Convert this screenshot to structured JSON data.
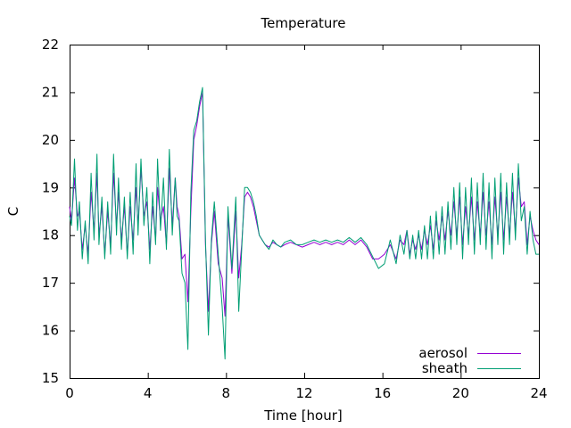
{
  "chart_data": {
    "type": "line",
    "title": "Temperature",
    "xlabel": "Time [hour]",
    "ylabel": "C",
    "xlim": [
      0,
      24
    ],
    "ylim": [
      15,
      22
    ],
    "xticks": [
      0,
      4,
      8,
      12,
      16,
      20,
      24
    ],
    "yticks": [
      15,
      16,
      17,
      18,
      19,
      20,
      21,
      22
    ],
    "grid": false,
    "legend_position": "bottom-right",
    "series": [
      {
        "name": "aerosol",
        "color": "#9400d3",
        "x": [
          0,
          0.1,
          0.25,
          0.4,
          0.5,
          0.65,
          0.8,
          0.95,
          1.1,
          1.25,
          1.4,
          1.5,
          1.65,
          1.8,
          1.95,
          2.1,
          2.25,
          2.4,
          2.5,
          2.65,
          2.8,
          2.95,
          3.1,
          3.25,
          3.4,
          3.5,
          3.65,
          3.8,
          3.95,
          4.1,
          4.25,
          4.4,
          4.5,
          4.65,
          4.8,
          4.95,
          5.1,
          5.25,
          5.4,
          5.5,
          5.6,
          5.75,
          5.9,
          6.05,
          6.2,
          6.35,
          6.5,
          6.65,
          6.8,
          6.95,
          7.1,
          7.25,
          7.4,
          7.6,
          7.8,
          7.95,
          8.1,
          8.3,
          8.5,
          8.65,
          8.8,
          8.95,
          9.1,
          9.25,
          9.4,
          9.55,
          9.7,
          9.85,
          10.0,
          10.2,
          10.4,
          10.6,
          10.8,
          11.0,
          11.3,
          11.6,
          11.9,
          12.2,
          12.5,
          12.8,
          13.1,
          13.4,
          13.7,
          14.0,
          14.3,
          14.6,
          14.9,
          15.2,
          15.5,
          15.8,
          16.1,
          16.4,
          16.7,
          16.9,
          17.1,
          17.25,
          17.4,
          17.55,
          17.7,
          17.85,
          18.0,
          18.15,
          18.3,
          18.45,
          18.6,
          18.75,
          18.9,
          19.05,
          19.2,
          19.35,
          19.5,
          19.65,
          19.8,
          19.95,
          20.1,
          20.25,
          20.4,
          20.55,
          20.7,
          20.85,
          21.0,
          21.15,
          21.3,
          21.45,
          21.6,
          21.75,
          21.9,
          22.05,
          22.2,
          22.35,
          22.5,
          22.65,
          22.8,
          22.95,
          23.1,
          23.25,
          23.4,
          23.55,
          23.7,
          23.85,
          24.0
        ],
        "y": [
          18.6,
          18.3,
          19.2,
          18.4,
          18.5,
          17.7,
          18.2,
          17.6,
          18.9,
          18.1,
          19.3,
          18.0,
          18.6,
          17.6,
          18.5,
          17.8,
          19.3,
          18.2,
          18.9,
          17.9,
          18.6,
          17.6,
          18.6,
          17.9,
          19.0,
          18.2,
          19.4,
          18.4,
          18.7,
          17.7,
          18.6,
          17.9,
          19.0,
          18.3,
          18.6,
          17.8,
          19.4,
          18.2,
          19.2,
          18.6,
          18.4,
          17.5,
          17.6,
          16.6,
          18.5,
          20.0,
          20.3,
          20.7,
          21.0,
          17.8,
          16.4,
          17.8,
          18.5,
          17.4,
          17.1,
          16.3,
          18.4,
          17.2,
          18.5,
          17.1,
          17.8,
          18.8,
          18.9,
          18.8,
          18.6,
          18.3,
          18.0,
          17.9,
          17.8,
          17.75,
          17.85,
          17.8,
          17.75,
          17.8,
          17.85,
          17.8,
          17.75,
          17.8,
          17.85,
          17.8,
          17.85,
          17.8,
          17.85,
          17.8,
          17.9,
          17.8,
          17.9,
          17.75,
          17.5,
          17.5,
          17.6,
          17.8,
          17.5,
          17.9,
          17.8,
          18.1,
          17.6,
          17.9,
          17.7,
          18.0,
          17.7,
          18.1,
          17.8,
          18.2,
          17.7,
          18.3,
          17.9,
          18.4,
          17.9,
          18.5,
          18.0,
          18.7,
          18.0,
          18.8,
          17.8,
          18.6,
          18.0,
          18.8,
          17.9,
          18.7,
          18.0,
          18.9,
          18.0,
          18.7,
          17.8,
          18.8,
          18.0,
          18.9,
          17.9,
          18.8,
          18.0,
          18.9,
          18.1,
          19.2,
          18.6,
          18.7,
          17.8,
          18.4,
          18.1,
          17.9,
          17.8
        ]
      },
      {
        "name": "sheath",
        "color": "#009e73",
        "x": [
          0,
          0.1,
          0.25,
          0.4,
          0.5,
          0.65,
          0.8,
          0.95,
          1.1,
          1.25,
          1.4,
          1.5,
          1.65,
          1.8,
          1.95,
          2.1,
          2.25,
          2.4,
          2.5,
          2.65,
          2.8,
          2.95,
          3.1,
          3.25,
          3.4,
          3.5,
          3.65,
          3.8,
          3.95,
          4.1,
          4.25,
          4.4,
          4.5,
          4.65,
          4.8,
          4.95,
          5.1,
          5.25,
          5.4,
          5.5,
          5.6,
          5.75,
          5.9,
          6.05,
          6.2,
          6.35,
          6.5,
          6.65,
          6.8,
          6.95,
          7.1,
          7.25,
          7.4,
          7.6,
          7.8,
          7.95,
          8.1,
          8.3,
          8.5,
          8.65,
          8.8,
          8.95,
          9.1,
          9.25,
          9.4,
          9.55,
          9.7,
          9.85,
          10.0,
          10.2,
          10.4,
          10.6,
          10.8,
          11.0,
          11.3,
          11.6,
          11.9,
          12.2,
          12.5,
          12.8,
          13.1,
          13.4,
          13.7,
          14.0,
          14.3,
          14.6,
          14.9,
          15.2,
          15.5,
          15.8,
          16.1,
          16.4,
          16.7,
          16.9,
          17.1,
          17.25,
          17.4,
          17.55,
          17.7,
          17.85,
          18.0,
          18.15,
          18.3,
          18.45,
          18.6,
          18.75,
          18.9,
          19.05,
          19.2,
          19.35,
          19.5,
          19.65,
          19.8,
          19.95,
          20.1,
          20.25,
          20.4,
          20.55,
          20.7,
          20.85,
          21.0,
          21.15,
          21.3,
          21.45,
          21.6,
          21.75,
          21.9,
          22.05,
          22.2,
          22.35,
          22.5,
          22.65,
          22.8,
          22.95,
          23.1,
          23.25,
          23.4,
          23.55,
          23.7,
          23.85,
          24.0
        ],
        "y": [
          18.4,
          18.2,
          19.6,
          18.1,
          18.7,
          17.5,
          18.3,
          17.4,
          19.3,
          17.9,
          19.7,
          17.8,
          18.8,
          17.5,
          18.7,
          17.6,
          19.7,
          18.0,
          19.2,
          17.7,
          18.8,
          17.5,
          18.9,
          17.6,
          19.5,
          18.0,
          19.6,
          18.2,
          19.0,
          17.4,
          18.9,
          17.8,
          19.6,
          18.1,
          19.2,
          17.7,
          19.8,
          18.0,
          19.2,
          18.4,
          18.3,
          17.2,
          17.0,
          15.6,
          18.9,
          20.2,
          20.4,
          20.8,
          21.1,
          17.9,
          15.9,
          17.9,
          18.7,
          17.6,
          16.5,
          15.4,
          18.6,
          17.3,
          18.8,
          16.4,
          17.7,
          19.0,
          19.0,
          18.9,
          18.7,
          18.4,
          18.0,
          17.9,
          17.8,
          17.7,
          17.9,
          17.8,
          17.75,
          17.85,
          17.9,
          17.8,
          17.8,
          17.85,
          17.9,
          17.85,
          17.9,
          17.85,
          17.9,
          17.85,
          17.95,
          17.85,
          17.95,
          17.8,
          17.55,
          17.3,
          17.4,
          17.9,
          17.4,
          18.0,
          17.6,
          18.1,
          17.5,
          18.0,
          17.5,
          18.1,
          17.5,
          18.2,
          17.5,
          18.4,
          17.5,
          18.5,
          17.6,
          18.6,
          17.6,
          18.7,
          17.7,
          19.0,
          17.8,
          19.1,
          17.5,
          19.0,
          17.8,
          19.2,
          17.6,
          19.1,
          17.8,
          19.3,
          17.7,
          19.1,
          17.5,
          19.2,
          17.8,
          19.3,
          17.6,
          19.1,
          17.8,
          19.3,
          17.9,
          19.5,
          18.3,
          18.6,
          17.6,
          18.5,
          17.9,
          17.6,
          17.6
        ]
      }
    ]
  }
}
